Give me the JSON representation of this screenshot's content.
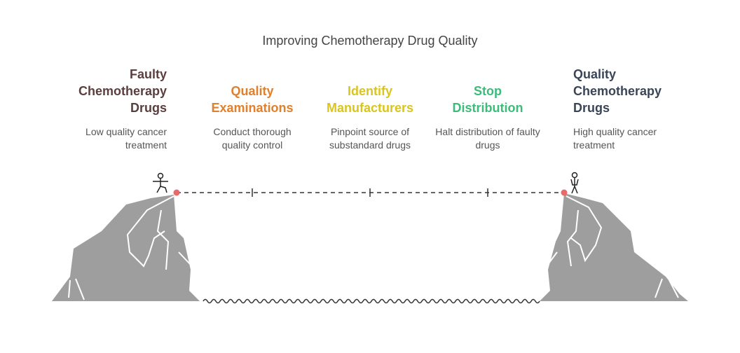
{
  "title": "Improving Chemotherapy Drug Quality",
  "start": {
    "label": "Faulty Chemotherapy Drugs",
    "description": "Low quality cancer treatment"
  },
  "steps": [
    {
      "label": "Quality Examinations",
      "description": "Conduct thorough quality control"
    },
    {
      "label": "Identify Manufacturers",
      "description": "Pinpoint source of substandard drugs"
    },
    {
      "label": "Stop Distribution",
      "description": "Halt distribution of faulty drugs"
    }
  ],
  "end": {
    "label": "Quality Chemotherapy Drugs",
    "description": "High quality cancer treatment"
  }
}
